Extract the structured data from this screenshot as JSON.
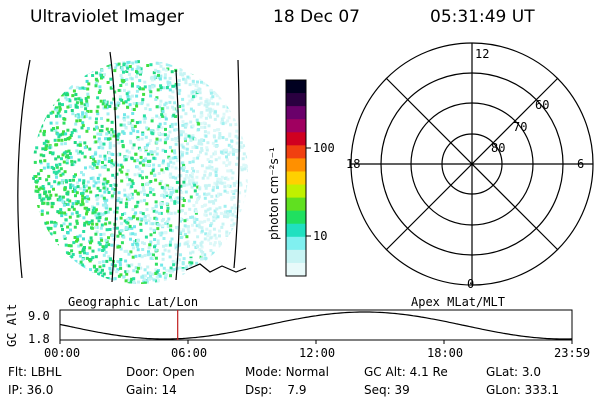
{
  "header": {
    "instrument": "Ultraviolet Imager",
    "date": "18 Dec 07",
    "time": "05:31:49 UT"
  },
  "colorbar": {
    "label": "photon cm⁻²s⁻¹",
    "ticks": [
      "100",
      "10"
    ],
    "colors": [
      "#000020",
      "#2a0040",
      "#6a006a",
      "#a00060",
      "#d00020",
      "#f04010",
      "#ff9000",
      "#ffd000",
      "#c0f000",
      "#60e020",
      "#20e060",
      "#20e0c0",
      "#80f0f0",
      "#c8f4f4",
      "#e8fafa"
    ]
  },
  "polar": {
    "mlt_labels": {
      "top": "12",
      "left": "18",
      "right": "6",
      "bottom": "0"
    },
    "lat_labels": [
      "60",
      "70",
      "80"
    ]
  },
  "timeline": {
    "left_label": "Geographic Lat/Lon",
    "right_label": "Apex MLat/MLT",
    "axis_label": "GC Alt",
    "y_max": "9.0",
    "y_min": "1.8",
    "time_ticks": [
      "00:00",
      "06:00",
      "12:00",
      "18:00",
      "23:59"
    ],
    "marker_color": "#c02020"
  },
  "info": {
    "row1": [
      {
        "k": "Flt:",
        "v": "LBHL"
      },
      {
        "k": "Door:",
        "v": "Open"
      },
      {
        "k": "Mode:",
        "v": "Normal"
      },
      {
        "k": "GC Alt:",
        "v": "4.1 Re"
      },
      {
        "k": "GLat:",
        "v": "3.0"
      }
    ],
    "row2": [
      {
        "k": "IP:",
        "v": "36.0"
      },
      {
        "k": "Gain:",
        "v": "14"
      },
      {
        "k": "Dsp:",
        "v": "7.9"
      },
      {
        "k": "Seq:",
        "v": "39"
      },
      {
        "k": "GLon:",
        "v": "333.1"
      }
    ]
  }
}
